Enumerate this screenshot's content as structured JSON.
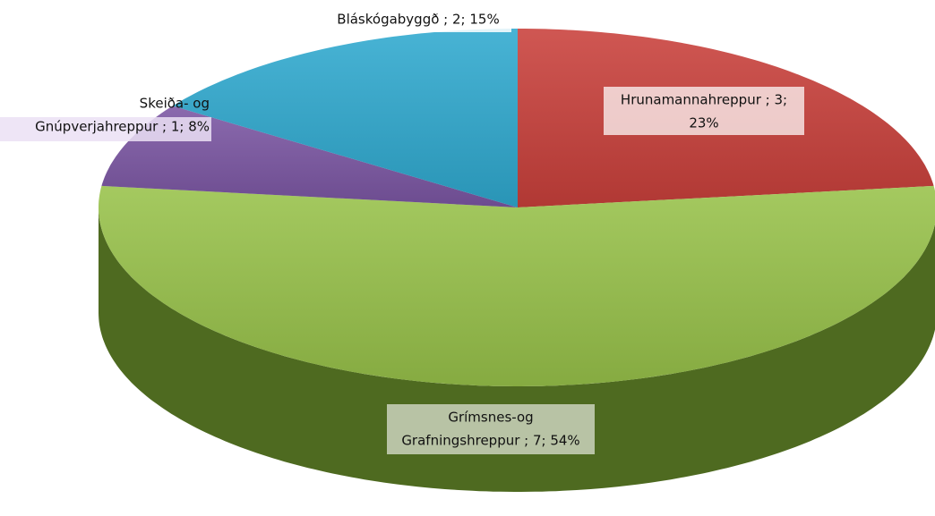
{
  "chart_data": {
    "type": "pie3d",
    "values": [
      3,
      7,
      1,
      2
    ],
    "value_labels": [
      [
        "Hrunamannahreppur ; 3;",
        "23%"
      ],
      [
        "Grímsnes-og",
        "Grafningshreppur ; 7; 54%"
      ],
      [
        "Skeiða- og",
        "Gnúpverjahreppur ; 1; 8%"
      ],
      [
        "Bláskógabyggð ; 2; 15%"
      ]
    ],
    "colors": [
      "#c9403b",
      "#98c24a",
      "#7b56a3",
      "#2fa9cf"
    ],
    "side_colors": [
      "#8a2522",
      "#4e6a20",
      "#4d3470",
      "#1d6f8a"
    ]
  }
}
